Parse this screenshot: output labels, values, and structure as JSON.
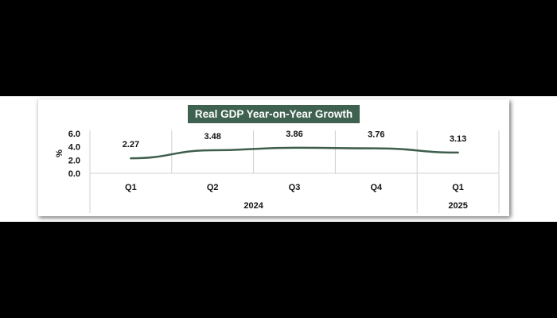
{
  "chart_data": {
    "type": "line",
    "title": "Real GDP Year-on-Year Growth (%)",
    "ylabel": "%",
    "xlabel": "",
    "ylim": [
      0,
      6
    ],
    "yticks": [
      "0.0",
      "2.0",
      "4.0",
      "6.0"
    ],
    "categories": [
      "Q1",
      "Q2",
      "Q3",
      "Q4",
      "Q1"
    ],
    "groups": [
      {
        "label": "2024",
        "span": 4
      },
      {
        "label": "2025",
        "span": 1
      }
    ],
    "values": [
      2.27,
      3.48,
      3.86,
      3.76,
      3.13
    ],
    "data_labels": [
      "2.27",
      "3.48",
      "3.86",
      "3.76",
      "3.13"
    ],
    "grid": false,
    "line_color": "#3e5e4c",
    "title_bg_color": "#3f6250"
  }
}
